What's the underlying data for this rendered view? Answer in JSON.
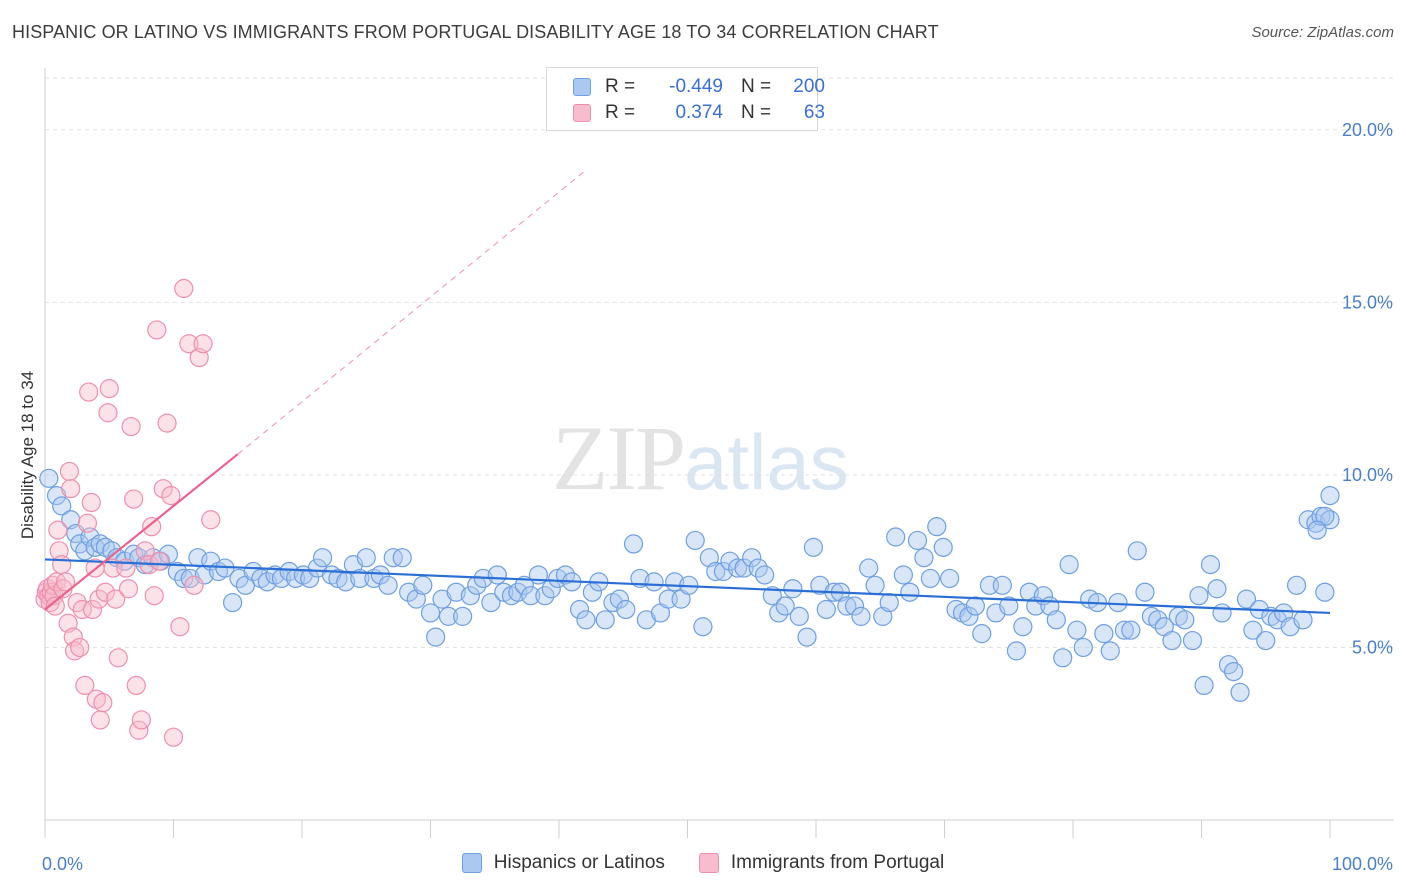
{
  "title": "HISPANIC OR LATINO VS IMMIGRANTS FROM PORTUGAL DISABILITY AGE 18 TO 34 CORRELATION CHART",
  "source": "Source: ZipAtlas.com",
  "watermark": {
    "zip": "ZIP",
    "atlas": "atlas"
  },
  "legend_top": {
    "rows": [
      {
        "r_label": "R =",
        "r_value": "-0.449",
        "n_label": "N =",
        "n_value": "200"
      },
      {
        "r_label": "R =",
        "r_value": "0.374",
        "n_label": "N =",
        "n_value": "63"
      }
    ]
  },
  "colors": {
    "blue_fill": "#aac8f0",
    "blue_stroke": "#6f9fe0",
    "blue_line": "#2b6fd6",
    "pink_fill": "#f7bccd",
    "pink_stroke": "#ee8fac",
    "pink_line": "#e8648e",
    "grid": "#e2e2e2",
    "tick_text": "#4a7fc7"
  },
  "chart_data": {
    "type": "scatter",
    "title": "HISPANIC OR LATINO VS IMMIGRANTS FROM PORTUGAL DISABILITY AGE 18 TO 34 CORRELATION CHART",
    "xlabel": "",
    "ylabel": "Disability Age 18 to 34",
    "xlim": [
      0,
      100
    ],
    "ylim": [
      0,
      21.5
    ],
    "x_tick_labels": [
      "0.0%",
      "100.0%"
    ],
    "y_ticks": [
      5,
      10,
      15,
      20
    ],
    "y_tick_labels": [
      "5.0%",
      "10.0%",
      "15.0%",
      "20.0%"
    ],
    "legend_position": "bottom-center",
    "series": [
      {
        "name": "Hispanics or Latinos",
        "r": -0.449,
        "n": 200,
        "trend": {
          "x0": 0,
          "y0": 7.55,
          "x1": 100,
          "y1": 6.0
        },
        "points": [
          [
            0.3,
            9.9
          ],
          [
            0.9,
            9.4
          ],
          [
            1.3,
            9.1
          ],
          [
            2.0,
            8.7
          ],
          [
            2.4,
            8.3
          ],
          [
            2.7,
            8.0
          ],
          [
            3.1,
            7.8
          ],
          [
            3.5,
            8.2
          ],
          [
            3.9,
            7.9
          ],
          [
            4.3,
            8.0
          ],
          [
            4.7,
            7.9
          ],
          [
            5.2,
            7.8
          ],
          [
            5.6,
            7.6
          ],
          [
            6.2,
            7.5
          ],
          [
            6.9,
            7.7
          ],
          [
            7.3,
            7.6
          ],
          [
            7.8,
            7.4
          ],
          [
            8.4,
            7.6
          ],
          [
            9.0,
            7.5
          ],
          [
            9.6,
            7.7
          ],
          [
            10.3,
            7.2
          ],
          [
            10.8,
            7.0
          ],
          [
            11.3,
            7.0
          ],
          [
            11.9,
            7.6
          ],
          [
            12.4,
            7.1
          ],
          [
            12.9,
            7.5
          ],
          [
            13.5,
            7.2
          ],
          [
            14.0,
            7.3
          ],
          [
            14.6,
            6.3
          ],
          [
            15.1,
            7.0
          ],
          [
            15.6,
            6.8
          ],
          [
            16.2,
            7.2
          ],
          [
            16.8,
            7.0
          ],
          [
            17.3,
            6.9
          ],
          [
            17.9,
            7.1
          ],
          [
            18.4,
            7.0
          ],
          [
            19.0,
            7.2
          ],
          [
            19.5,
            7.0
          ],
          [
            20.1,
            7.1
          ],
          [
            20.6,
            7.0
          ],
          [
            21.2,
            7.3
          ],
          [
            21.6,
            7.6
          ],
          [
            22.3,
            7.1
          ],
          [
            22.8,
            7.0
          ],
          [
            23.4,
            6.9
          ],
          [
            24.0,
            7.4
          ],
          [
            24.5,
            7.0
          ],
          [
            25.0,
            7.6
          ],
          [
            25.6,
            7.0
          ],
          [
            26.1,
            7.1
          ],
          [
            26.7,
            6.8
          ],
          [
            27.1,
            7.6
          ],
          [
            27.8,
            7.6
          ],
          [
            28.3,
            6.6
          ],
          [
            28.9,
            6.4
          ],
          [
            29.4,
            6.8
          ],
          [
            30.0,
            6.0
          ],
          [
            30.4,
            5.3
          ],
          [
            30.9,
            6.4
          ],
          [
            31.4,
            5.9
          ],
          [
            32.0,
            6.6
          ],
          [
            32.5,
            5.9
          ],
          [
            33.1,
            6.5
          ],
          [
            33.6,
            6.8
          ],
          [
            34.1,
            7.0
          ],
          [
            34.7,
            6.3
          ],
          [
            35.2,
            7.1
          ],
          [
            35.7,
            6.6
          ],
          [
            36.3,
            6.5
          ],
          [
            36.8,
            6.6
          ],
          [
            37.3,
            6.8
          ],
          [
            37.8,
            6.5
          ],
          [
            38.4,
            7.1
          ],
          [
            38.9,
            6.5
          ],
          [
            39.4,
            6.7
          ],
          [
            39.9,
            7.0
          ],
          [
            40.5,
            7.1
          ],
          [
            41.0,
            6.9
          ],
          [
            41.6,
            6.1
          ],
          [
            42.1,
            5.8
          ],
          [
            42.6,
            6.6
          ],
          [
            43.1,
            6.9
          ],
          [
            43.6,
            5.8
          ],
          [
            44.2,
            6.3
          ],
          [
            44.7,
            6.4
          ],
          [
            45.2,
            6.1
          ],
          [
            45.8,
            8.0
          ],
          [
            46.3,
            7.0
          ],
          [
            46.8,
            5.8
          ],
          [
            47.4,
            6.9
          ],
          [
            47.9,
            6.0
          ],
          [
            48.5,
            6.4
          ],
          [
            49.0,
            6.9
          ],
          [
            49.5,
            6.4
          ],
          [
            50.1,
            6.8
          ],
          [
            50.6,
            8.1
          ],
          [
            51.2,
            5.6
          ],
          [
            51.7,
            7.6
          ],
          [
            52.2,
            7.2
          ],
          [
            52.8,
            7.2
          ],
          [
            53.3,
            7.5
          ],
          [
            53.9,
            7.3
          ],
          [
            54.4,
            7.3
          ],
          [
            55.0,
            7.6
          ],
          [
            55.5,
            7.3
          ],
          [
            56.0,
            7.1
          ],
          [
            56.6,
            6.5
          ],
          [
            57.1,
            6.0
          ],
          [
            57.6,
            6.2
          ],
          [
            58.2,
            6.7
          ],
          [
            58.7,
            5.9
          ],
          [
            59.3,
            5.3
          ],
          [
            59.8,
            7.9
          ],
          [
            60.3,
            6.8
          ],
          [
            60.8,
            6.1
          ],
          [
            61.4,
            6.6
          ],
          [
            61.9,
            6.6
          ],
          [
            62.4,
            6.2
          ],
          [
            63.0,
            6.2
          ],
          [
            63.5,
            5.9
          ],
          [
            64.1,
            7.3
          ],
          [
            64.6,
            6.8
          ],
          [
            65.2,
            5.9
          ],
          [
            65.7,
            6.3
          ],
          [
            66.2,
            8.2
          ],
          [
            66.8,
            7.1
          ],
          [
            67.3,
            6.6
          ],
          [
            67.9,
            8.1
          ],
          [
            68.4,
            7.6
          ],
          [
            68.9,
            7.0
          ],
          [
            69.4,
            8.5
          ],
          [
            69.9,
            7.9
          ],
          [
            70.4,
            7.0
          ],
          [
            70.9,
            6.1
          ],
          [
            71.4,
            6.0
          ],
          [
            71.9,
            5.9
          ],
          [
            72.4,
            6.2
          ],
          [
            72.9,
            5.4
          ],
          [
            73.5,
            6.8
          ],
          [
            74.0,
            6.0
          ],
          [
            74.5,
            6.8
          ],
          [
            75.0,
            6.2
          ],
          [
            75.6,
            4.9
          ],
          [
            76.1,
            5.6
          ],
          [
            76.6,
            6.6
          ],
          [
            77.1,
            6.2
          ],
          [
            77.7,
            6.5
          ],
          [
            78.2,
            6.2
          ],
          [
            78.7,
            5.8
          ],
          [
            79.2,
            4.7
          ],
          [
            79.7,
            7.4
          ],
          [
            80.3,
            5.5
          ],
          [
            80.8,
            5.0
          ],
          [
            81.3,
            6.4
          ],
          [
            81.9,
            6.3
          ],
          [
            82.4,
            5.4
          ],
          [
            82.9,
            4.9
          ],
          [
            83.5,
            6.3
          ],
          [
            84.0,
            5.5
          ],
          [
            84.5,
            5.5
          ],
          [
            85.0,
            7.8
          ],
          [
            85.6,
            6.6
          ],
          [
            86.1,
            5.9
          ],
          [
            86.6,
            5.8
          ],
          [
            87.1,
            5.6
          ],
          [
            87.7,
            5.2
          ],
          [
            88.2,
            5.9
          ],
          [
            88.7,
            5.8
          ],
          [
            89.3,
            5.2
          ],
          [
            89.8,
            6.5
          ],
          [
            90.2,
            3.9
          ],
          [
            90.7,
            7.4
          ],
          [
            91.2,
            6.7
          ],
          [
            91.6,
            6.0
          ],
          [
            92.1,
            4.5
          ],
          [
            92.5,
            4.3
          ],
          [
            93.0,
            3.7
          ],
          [
            93.5,
            6.4
          ],
          [
            94.0,
            5.5
          ],
          [
            94.5,
            6.1
          ],
          [
            95.0,
            5.2
          ],
          [
            95.4,
            5.9
          ],
          [
            95.9,
            5.8
          ],
          [
            96.4,
            6.0
          ],
          [
            96.9,
            5.6
          ],
          [
            97.4,
            6.8
          ],
          [
            97.9,
            5.8
          ],
          [
            98.3,
            8.7
          ],
          [
            98.9,
            8.6
          ],
          [
            99.3,
            8.8
          ],
          [
            99.6,
            6.6
          ],
          [
            100.0,
            8.7
          ],
          [
            100.0,
            9.4
          ],
          [
            99.6,
            8.8
          ],
          [
            99.0,
            8.4
          ]
        ]
      },
      {
        "name": "Immigrants from Portugal",
        "r": 0.374,
        "n": 63,
        "trend": {
          "x0": 0,
          "y0": 6.1,
          "x1": 15,
          "y1": 10.6
        },
        "trend_extension": {
          "x0": 15,
          "y0": 10.6,
          "x1": 42,
          "y1": 18.8
        },
        "points": [
          [
            0.0,
            6.4
          ],
          [
            0.1,
            6.6
          ],
          [
            0.2,
            6.7
          ],
          [
            0.3,
            6.5
          ],
          [
            0.4,
            6.3
          ],
          [
            0.5,
            6.6
          ],
          [
            0.6,
            6.8
          ],
          [
            0.7,
            6.5
          ],
          [
            0.8,
            6.2
          ],
          [
            0.9,
            6.9
          ],
          [
            1.0,
            8.4
          ],
          [
            1.1,
            7.8
          ],
          [
            1.3,
            7.4
          ],
          [
            1.4,
            6.7
          ],
          [
            1.6,
            6.9
          ],
          [
            1.8,
            5.7
          ],
          [
            1.9,
            10.1
          ],
          [
            2.0,
            9.6
          ],
          [
            2.2,
            5.3
          ],
          [
            2.3,
            4.9
          ],
          [
            2.5,
            6.3
          ],
          [
            2.7,
            5.0
          ],
          [
            2.9,
            6.1
          ],
          [
            3.1,
            3.9
          ],
          [
            3.3,
            8.6
          ],
          [
            3.4,
            12.4
          ],
          [
            3.6,
            9.2
          ],
          [
            3.7,
            6.1
          ],
          [
            3.9,
            7.3
          ],
          [
            4.0,
            3.5
          ],
          [
            4.2,
            6.4
          ],
          [
            4.3,
            2.9
          ],
          [
            4.5,
            3.4
          ],
          [
            4.7,
            6.6
          ],
          [
            4.9,
            11.8
          ],
          [
            5.0,
            12.5
          ],
          [
            5.3,
            7.3
          ],
          [
            5.5,
            6.4
          ],
          [
            5.7,
            4.7
          ],
          [
            6.3,
            7.3
          ],
          [
            6.5,
            6.7
          ],
          [
            6.7,
            11.4
          ],
          [
            6.9,
            9.3
          ],
          [
            7.1,
            3.9
          ],
          [
            7.3,
            2.6
          ],
          [
            7.5,
            2.9
          ],
          [
            7.8,
            7.8
          ],
          [
            8.1,
            7.4
          ],
          [
            8.3,
            8.5
          ],
          [
            8.5,
            6.5
          ],
          [
            8.7,
            14.2
          ],
          [
            8.9,
            7.5
          ],
          [
            9.2,
            9.6
          ],
          [
            9.5,
            11.5
          ],
          [
            9.8,
            9.4
          ],
          [
            10.0,
            2.4
          ],
          [
            10.5,
            5.6
          ],
          [
            10.8,
            15.4
          ],
          [
            11.2,
            13.8
          ],
          [
            11.6,
            6.8
          ],
          [
            12.0,
            13.4
          ],
          [
            12.3,
            13.8
          ],
          [
            12.9,
            8.7
          ]
        ]
      }
    ]
  },
  "legend_bottom": [
    {
      "label": "Hispanics or Latinos"
    },
    {
      "label": "Immigrants from Portugal"
    }
  ]
}
